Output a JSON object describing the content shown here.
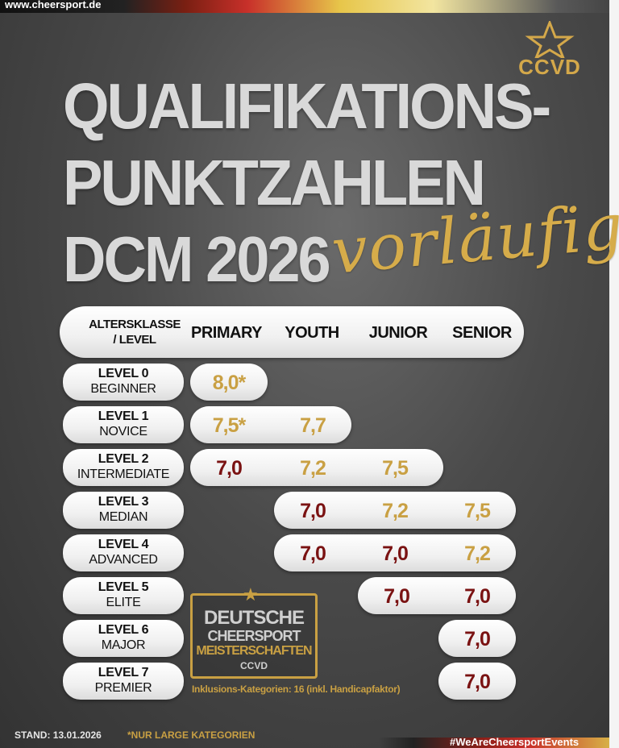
{
  "site_url": "www.cheersport.de",
  "logo": {
    "text": "CCVD"
  },
  "headline": {
    "line1": "QUALIFIKATIONS-",
    "line2": "PUNKTZAHLEN",
    "line3": "DCM 2026",
    "script": "vorläufig"
  },
  "table": {
    "header": {
      "age_line1": "ALTERSKLASSE",
      "age_line2": "/ LEVEL",
      "primary": "PRIMARY",
      "youth": "YOUTH",
      "junior": "JUNIOR",
      "senior": "SENIOR"
    },
    "rows": [
      {
        "level": "LEVEL 0",
        "name": "BEGINNER",
        "primary": "8,0*"
      },
      {
        "level": "LEVEL 1",
        "name": "NOVICE",
        "primary": "7,5*",
        "youth": "7,7"
      },
      {
        "level": "LEVEL 2",
        "name": "INTERMEDIATE",
        "primary": "7,0",
        "youth": "7,2",
        "junior": "7,5"
      },
      {
        "level": "LEVEL 3",
        "name": "MEDIAN",
        "youth": "7,0",
        "junior": "7,2",
        "senior": "7,5"
      },
      {
        "level": "LEVEL 4",
        "name": "ADVANCED",
        "youth": "7,0",
        "junior": "7,0",
        "senior": "7,2"
      },
      {
        "level": "LEVEL 5",
        "name": "ELITE",
        "junior": "7,0",
        "senior": "7,0"
      },
      {
        "level": "LEVEL 6",
        "name": "MAJOR",
        "senior": "7,0"
      },
      {
        "level": "LEVEL 7",
        "name": "PREMIER",
        "senior": "7,0"
      }
    ]
  },
  "emblem": {
    "line1": "DEUTSCHE",
    "line2": "CHEERSPORT",
    "line3": "MEISTERSCHAFTEN",
    "line4": "CCVD"
  },
  "inclusion_note": "Inklusions-Kategorien: 16  (inkl. Handicapfaktor)",
  "footer": {
    "stand": "STAND: 13.01.2026",
    "footnote": "*NUR LARGE KATEGORIEN",
    "hashtag": "#WeAreCheersportEvents"
  },
  "colors": {
    "gold": "#c9a043",
    "red": "#7a1212",
    "background": "#4a4a4a"
  }
}
